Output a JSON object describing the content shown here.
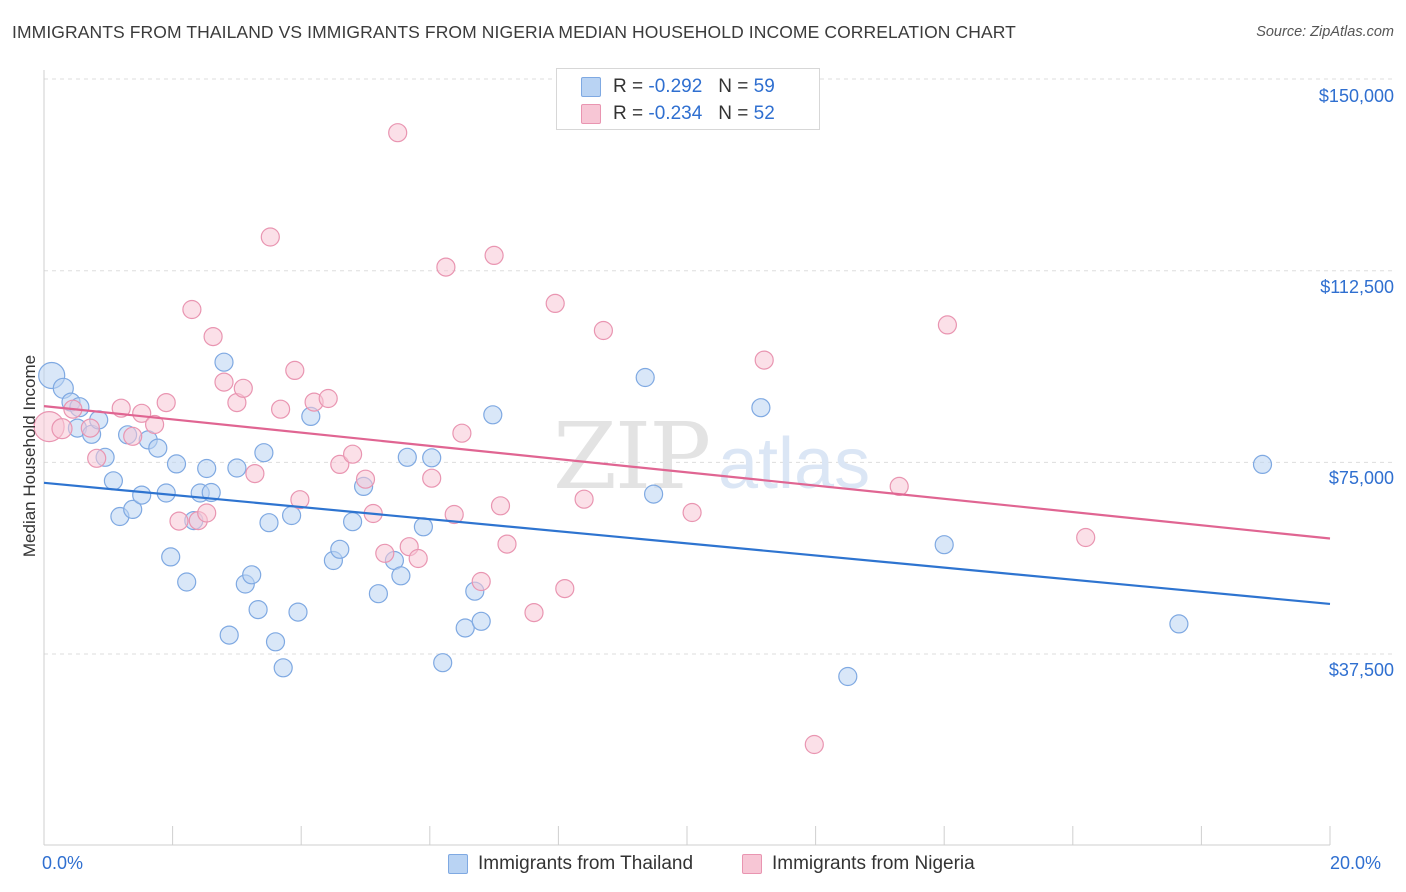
{
  "title": "IMMIGRANTS FROM THAILAND VS IMMIGRANTS FROM NIGERIA MEDIAN HOUSEHOLD INCOME CORRELATION CHART",
  "source": "Source: ZipAtlas.com",
  "watermark": {
    "zip": "ZIP",
    "atlas": "atlas"
  },
  "legend": {
    "r_label": "R =",
    "n_label": "N =",
    "thailand": {
      "r": "-0.292",
      "n": "59"
    },
    "nigeria": {
      "r": "-0.234",
      "n": "52"
    }
  },
  "colors": {
    "thailand_fill": "#b9d3f3",
    "thailand_stroke": "#7fa9e2",
    "thailand_line": "#2e74d0",
    "nigeria_fill": "#f7c6d5",
    "nigeria_stroke": "#e995b1",
    "nigeria_line": "#e06592",
    "tick_text": "#2f6fd0",
    "grid": "#dddddd"
  },
  "chart_data": {
    "type": "scatter",
    "xlabel": "",
    "ylabel": "Median Household Income",
    "xlim": [
      0,
      20
    ],
    "ylim": [
      0,
      155000
    ],
    "x_tick_labels": {
      "left": "0.0%",
      "right": "20.0%"
    },
    "y_ticks": [
      {
        "value": 37500,
        "label": "$37,500"
      },
      {
        "value": 75000,
        "label": "$75,000"
      },
      {
        "value": 112500,
        "label": "$112,500"
      },
      {
        "value": 150000,
        "label": "$150,000"
      }
    ],
    "grid": true,
    "legend_position": "top-center",
    "series": [
      {
        "name": "Immigrants from Thailand",
        "color": "#2e74d0",
        "trend": {
          "x": [
            0,
            20
          ],
          "y": [
            71000,
            47300
          ]
        },
        "points": [
          [
            0.12,
            92000,
            22
          ],
          [
            0.3,
            89500,
            16
          ],
          [
            0.42,
            86800,
            14
          ],
          [
            0.55,
            85800,
            15
          ],
          [
            0.52,
            81700,
            14
          ],
          [
            0.74,
            80500,
            14
          ],
          [
            0.85,
            83300,
            14
          ],
          [
            0.95,
            76000,
            14
          ],
          [
            1.08,
            71400,
            14
          ],
          [
            1.18,
            64400,
            14
          ],
          [
            1.38,
            65800,
            14
          ],
          [
            1.3,
            80400,
            14
          ],
          [
            1.52,
            68600,
            14
          ],
          [
            1.62,
            79400,
            14
          ],
          [
            1.77,
            77800,
            14
          ],
          [
            1.9,
            69000,
            14
          ],
          [
            1.97,
            56500,
            14
          ],
          [
            2.06,
            74700,
            14
          ],
          [
            2.22,
            51600,
            14
          ],
          [
            2.33,
            63600,
            14
          ],
          [
            2.43,
            69000,
            14
          ],
          [
            2.53,
            73800,
            14
          ],
          [
            2.6,
            69100,
            14
          ],
          [
            2.8,
            94600,
            14
          ],
          [
            2.88,
            41200,
            14
          ],
          [
            3.0,
            73900,
            14
          ],
          [
            3.13,
            51200,
            14
          ],
          [
            3.23,
            53000,
            14
          ],
          [
            3.33,
            46200,
            14
          ],
          [
            3.42,
            76900,
            14
          ],
          [
            3.5,
            63200,
            14
          ],
          [
            3.6,
            39900,
            14
          ],
          [
            3.72,
            34800,
            14
          ],
          [
            3.85,
            64600,
            14
          ],
          [
            3.95,
            45700,
            14
          ],
          [
            4.15,
            84000,
            14
          ],
          [
            4.5,
            55800,
            14
          ],
          [
            4.6,
            58000,
            14
          ],
          [
            4.8,
            63400,
            14
          ],
          [
            4.97,
            70300,
            14
          ],
          [
            5.2,
            49300,
            14
          ],
          [
            5.45,
            55800,
            14
          ],
          [
            5.55,
            52800,
            14
          ],
          [
            5.65,
            76000,
            14
          ],
          [
            5.9,
            62400,
            14
          ],
          [
            6.03,
            75900,
            14
          ],
          [
            6.2,
            35800,
            14
          ],
          [
            6.55,
            42600,
            14
          ],
          [
            6.7,
            49800,
            14
          ],
          [
            6.8,
            43900,
            14
          ],
          [
            6.98,
            84300,
            14
          ],
          [
            9.35,
            91600,
            14
          ],
          [
            9.48,
            68800,
            14
          ],
          [
            11.15,
            85700,
            14
          ],
          [
            12.5,
            33100,
            14
          ],
          [
            14.0,
            58900,
            14
          ],
          [
            17.65,
            43400,
            14
          ],
          [
            18.95,
            74600,
            14
          ]
        ]
      },
      {
        "name": "Immigrants from Nigeria",
        "color": "#e06592",
        "trend": {
          "x": [
            0,
            20
          ],
          "y": [
            86000,
            60100
          ]
        },
        "points": [
          [
            0.08,
            82000,
            26
          ],
          [
            0.28,
            81600,
            16
          ],
          [
            0.45,
            85400,
            14
          ],
          [
            0.72,
            81700,
            14
          ],
          [
            0.82,
            75800,
            14
          ],
          [
            1.2,
            85600,
            14
          ],
          [
            1.38,
            80100,
            14
          ],
          [
            1.52,
            84600,
            14
          ],
          [
            1.72,
            82400,
            14
          ],
          [
            1.9,
            86700,
            14
          ],
          [
            2.1,
            63500,
            14
          ],
          [
            2.3,
            104900,
            14
          ],
          [
            2.4,
            63600,
            14
          ],
          [
            2.53,
            65100,
            14
          ],
          [
            2.63,
            99600,
            14
          ],
          [
            2.8,
            90700,
            14
          ],
          [
            3.0,
            86700,
            14
          ],
          [
            3.1,
            89500,
            14
          ],
          [
            3.28,
            72800,
            14
          ],
          [
            3.52,
            119100,
            14
          ],
          [
            3.68,
            85400,
            14
          ],
          [
            3.9,
            93000,
            14
          ],
          [
            3.98,
            67700,
            14
          ],
          [
            4.2,
            86800,
            14
          ],
          [
            4.42,
            87500,
            14
          ],
          [
            4.6,
            74600,
            14
          ],
          [
            4.8,
            76600,
            14
          ],
          [
            5.0,
            71700,
            14
          ],
          [
            5.12,
            65000,
            14
          ],
          [
            5.3,
            57200,
            14
          ],
          [
            5.5,
            139500,
            14
          ],
          [
            5.68,
            58500,
            14
          ],
          [
            5.82,
            56200,
            14
          ],
          [
            6.03,
            71900,
            14
          ],
          [
            6.25,
            113200,
            14
          ],
          [
            6.38,
            64800,
            14
          ],
          [
            6.5,
            80700,
            14
          ],
          [
            6.8,
            51700,
            14
          ],
          [
            7.0,
            115500,
            14
          ],
          [
            7.1,
            66500,
            14
          ],
          [
            7.2,
            59000,
            14
          ],
          [
            7.62,
            45600,
            14
          ],
          [
            7.95,
            106100,
            14
          ],
          [
            8.1,
            50300,
            14
          ],
          [
            8.4,
            67800,
            14
          ],
          [
            8.7,
            100800,
            14
          ],
          [
            10.08,
            65200,
            14
          ],
          [
            11.2,
            95000,
            14
          ],
          [
            11.98,
            19800,
            14
          ],
          [
            13.3,
            70300,
            14
          ],
          [
            14.05,
            101900,
            14
          ],
          [
            16.2,
            60300,
            14
          ]
        ]
      }
    ]
  },
  "bottom_legend": [
    {
      "key": "thailand",
      "label": "Immigrants from Thailand"
    },
    {
      "key": "nigeria",
      "label": "Immigrants from Nigeria"
    }
  ]
}
